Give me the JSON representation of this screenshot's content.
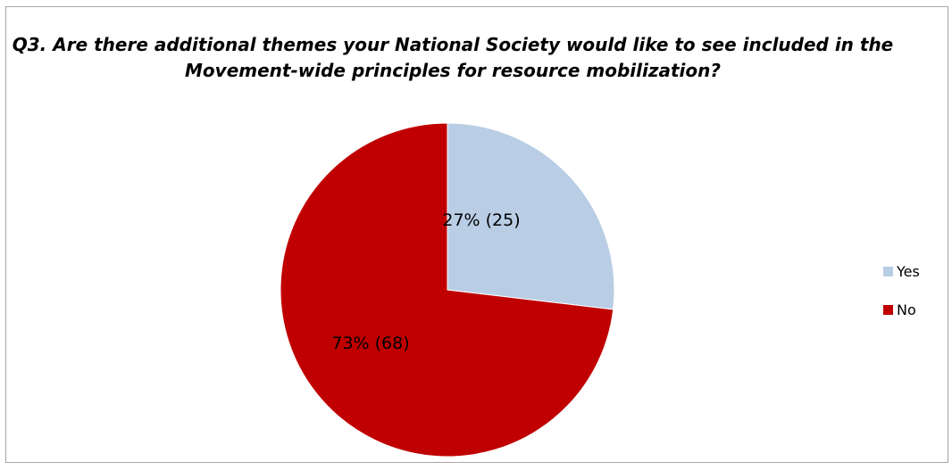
{
  "chart_data": {
    "type": "pie",
    "title": "Q3. Are there additional themes your National Society would like to see included in the Movement-wide principles for resource mobilization?",
    "slices": [
      {
        "name": "Yes",
        "value": 25,
        "percent": 27,
        "label": "27% (25)",
        "color": "#b9cde5"
      },
      {
        "name": "No",
        "value": 68,
        "percent": 73,
        "label": "73% (68)",
        "color": "#c00000"
      }
    ],
    "legend": {
      "position": "right",
      "entries": [
        "Yes",
        "No"
      ]
    }
  }
}
